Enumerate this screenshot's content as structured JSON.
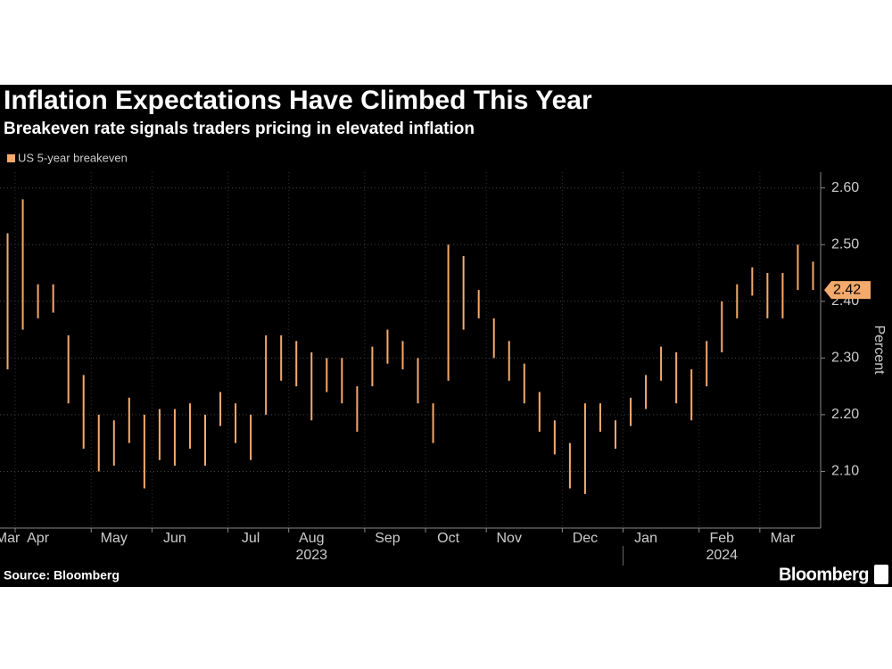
{
  "chart_data": {
    "type": "range",
    "title": "Inflation Expectations Have Climbed This Year",
    "subtitle": "Breakeven rate signals traders pricing in elevated inflation",
    "y_label": "Percent",
    "source": "Source: Bloomberg",
    "brand": "Bloomberg",
    "color": "#f4aa6c",
    "grid": true,
    "ylim": [
      2.0,
      2.62
    ],
    "yticks": [
      {
        "value": 2.1,
        "label": "2.10"
      },
      {
        "value": 2.2,
        "label": "2.20"
      },
      {
        "value": 2.3,
        "label": "2.30"
      },
      {
        "value": 2.4,
        "label": "2.40"
      },
      {
        "value": 2.5,
        "label": "2.50"
      },
      {
        "value": 2.6,
        "label": "2.60"
      }
    ],
    "years": [
      "2023",
      "2024"
    ],
    "last": {
      "value": 2.42,
      "label": "2.42"
    },
    "categories": [
      "Mar",
      null,
      "Apr",
      null,
      null,
      null,
      null,
      "May",
      null,
      null,
      null,
      "Jun",
      null,
      null,
      null,
      null,
      "Jul",
      null,
      null,
      null,
      "Aug",
      null,
      null,
      null,
      null,
      "Sep",
      null,
      null,
      null,
      "Oct",
      null,
      null,
      null,
      "Nov",
      null,
      null,
      null,
      null,
      "Dec",
      null,
      null,
      null,
      "Jan",
      null,
      null,
      null,
      null,
      "Feb",
      null,
      null,
      null,
      "Mar",
      null,
      null
    ],
    "series": [
      {
        "name": "US 5-year breakeven",
        "high": [
          2.52,
          2.58,
          2.43,
          2.43,
          2.34,
          2.27,
          2.2,
          2.19,
          2.23,
          2.2,
          2.21,
          2.21,
          2.22,
          2.2,
          2.24,
          2.22,
          2.2,
          2.34,
          2.34,
          2.33,
          2.31,
          2.3,
          2.3,
          2.25,
          2.32,
          2.35,
          2.33,
          2.3,
          2.22,
          2.5,
          2.48,
          2.42,
          2.37,
          2.33,
          2.29,
          2.24,
          2.19,
          2.15,
          2.22,
          2.22,
          2.19,
          2.23,
          2.27,
          2.32,
          2.31,
          2.28,
          2.33,
          2.4,
          2.43,
          2.46,
          2.45,
          2.45,
          2.5,
          2.47
        ],
        "low": [
          2.28,
          2.35,
          2.37,
          2.38,
          2.22,
          2.14,
          2.1,
          2.11,
          2.15,
          2.07,
          2.12,
          2.11,
          2.14,
          2.11,
          2.18,
          2.15,
          2.12,
          2.2,
          2.26,
          2.25,
          2.19,
          2.24,
          2.22,
          2.17,
          2.25,
          2.29,
          2.28,
          2.22,
          2.15,
          2.26,
          2.35,
          2.37,
          2.3,
          2.26,
          2.22,
          2.17,
          2.13,
          2.07,
          2.06,
          2.17,
          2.14,
          2.18,
          2.21,
          2.26,
          2.22,
          2.19,
          2.25,
          2.31,
          2.37,
          2.41,
          2.37,
          2.37,
          2.42,
          2.42
        ]
      }
    ]
  }
}
